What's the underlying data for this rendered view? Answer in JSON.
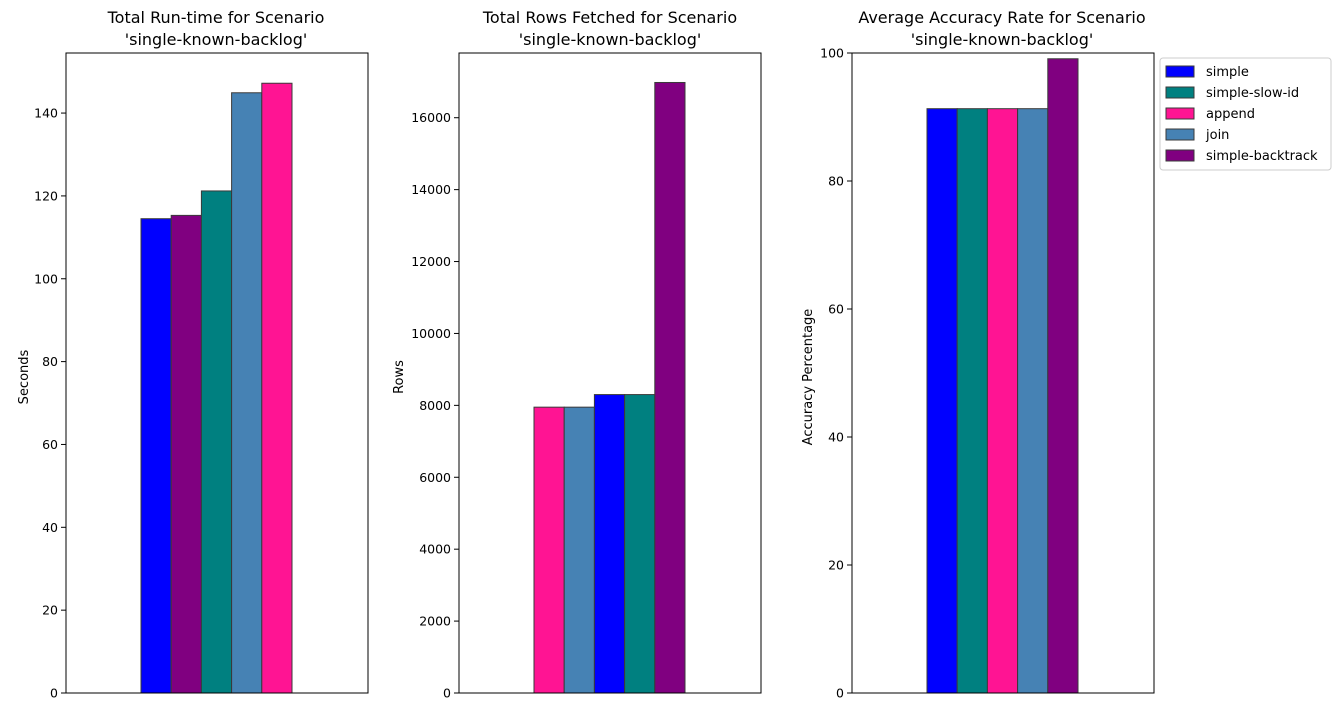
{
  "colors": {
    "simple": "#0000ff",
    "simple-slow-id": "#008080",
    "append": "#ff1493",
    "join": "#4682b4",
    "simple-backtrack": "#800080"
  },
  "legend": {
    "placement": "outside-right-top",
    "entries": [
      "simple",
      "simple-slow-id",
      "append",
      "join",
      "simple-backtrack"
    ]
  },
  "chart_data": [
    {
      "type": "bar",
      "title_line1": "Total Run-time for Scenario",
      "title_line2": "'single-known-backlog'",
      "ylabel": "Seconds",
      "ylim": [
        0,
        154.5
      ],
      "yticks": [
        0,
        20,
        40,
        60,
        80,
        100,
        120,
        140
      ],
      "grid": false,
      "series": [
        {
          "name": "simple",
          "value": 114.5
        },
        {
          "name": "simple-backtrack",
          "value": 115.3
        },
        {
          "name": "simple-slow-id",
          "value": 121.2
        },
        {
          "name": "join",
          "value": 144.9
        },
        {
          "name": "append",
          "value": 147.2
        }
      ]
    },
    {
      "type": "bar",
      "title_line1": "Total Rows Fetched for Scenario",
      "title_line2": "'single-known-backlog'",
      "ylabel": "Rows",
      "ylim": [
        0,
        17800
      ],
      "yticks": [
        0,
        2000,
        4000,
        6000,
        8000,
        10000,
        12000,
        14000,
        16000
      ],
      "grid": false,
      "series": [
        {
          "name": "append",
          "value": 7950
        },
        {
          "name": "join",
          "value": 7950
        },
        {
          "name": "simple",
          "value": 8300
        },
        {
          "name": "simple-slow-id",
          "value": 8300
        },
        {
          "name": "simple-backtrack",
          "value": 16980
        }
      ]
    },
    {
      "type": "bar",
      "title_line1": "Average Accuracy Rate for Scenario",
      "title_line2": "'single-known-backlog'",
      "ylabel": "Accuracy Percentage",
      "ylim": [
        0,
        100
      ],
      "yticks": [
        0,
        20,
        40,
        60,
        80,
        100
      ],
      "grid": false,
      "series": [
        {
          "name": "simple",
          "value": 91.3
        },
        {
          "name": "simple-slow-id",
          "value": 91.3
        },
        {
          "name": "append",
          "value": 91.3
        },
        {
          "name": "join",
          "value": 91.3
        },
        {
          "name": "simple-backtrack",
          "value": 99.1
        }
      ]
    }
  ]
}
